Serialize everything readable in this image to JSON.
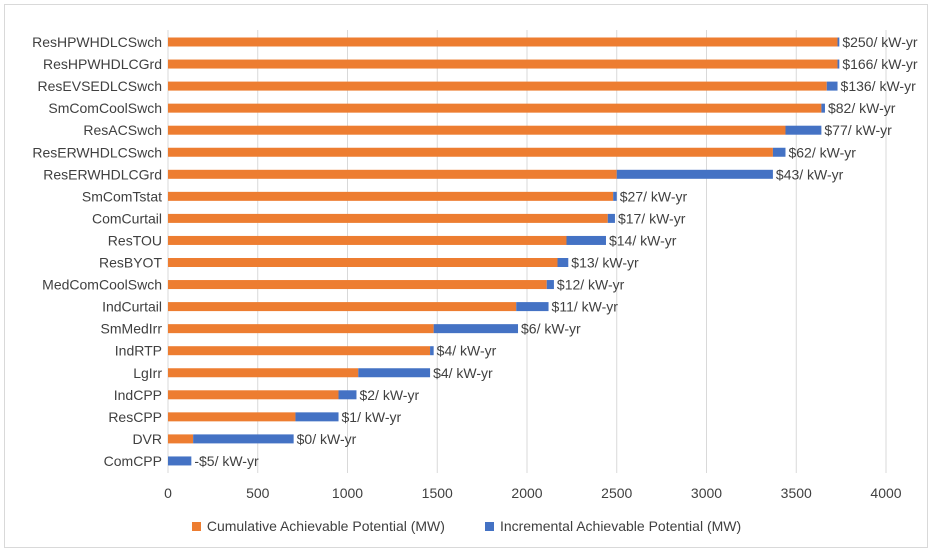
{
  "chart_data": {
    "type": "bar",
    "orientation": "horizontal",
    "stacked": true,
    "categories": [
      "ResHPWHDLCSwch",
      "ResHPWHDLCGrd",
      "ResEVSEDLCSwch",
      "SmComCoolSwch",
      "ResACSwch",
      "ResERWHDLCSwch",
      "ResERWHDLCGrd",
      "SmComTstat",
      "ComCurtail",
      "ResTOU",
      "ResBYOT",
      "MedComCoolSwch",
      "IndCurtail",
      "SmMedIrr",
      "IndRTP",
      "LgIrr",
      "IndCPP",
      "ResCPP",
      "DVR",
      "ComCPP"
    ],
    "series": [
      {
        "name": "Cumulative Achievable Potential (MW)",
        "color": "#ED7D31",
        "values": [
          3730,
          3730,
          3670,
          3640,
          3440,
          3370,
          2500,
          2480,
          2450,
          2220,
          2170,
          2110,
          1940,
          1480,
          1460,
          1060,
          950,
          710,
          140,
          0
        ]
      },
      {
        "name": "Incremental Achievable Potential (MW)",
        "color": "#4472C4",
        "values": [
          10,
          10,
          60,
          20,
          200,
          70,
          870,
          20,
          40,
          220,
          60,
          40,
          180,
          470,
          20,
          400,
          100,
          240,
          560,
          130
        ]
      }
    ],
    "data_labels": [
      "$250/ kW-yr",
      "$166/ kW-yr",
      "$136/ kW-yr",
      "$82/ kW-yr",
      "$77/ kW-yr",
      "$62/ kW-yr",
      "$43/ kW-yr",
      "$27/ kW-yr",
      "$17/ kW-yr",
      "$14/ kW-yr",
      "$13/ kW-yr",
      "$12/ kW-yr",
      "$11/ kW-yr",
      "$6/ kW-yr",
      "$4/ kW-yr",
      "$4/ kW-yr",
      "$2/ kW-yr",
      "$1/ kW-yr",
      "$0/ kW-yr",
      "-$5/ kW-yr"
    ],
    "xlim": [
      0,
      4000
    ],
    "xticks": [
      "0",
      "500",
      "1000",
      "1500",
      "2000",
      "2500",
      "3000",
      "3500",
      "4000"
    ],
    "grid": "vertical",
    "legend_position": "bottom"
  }
}
